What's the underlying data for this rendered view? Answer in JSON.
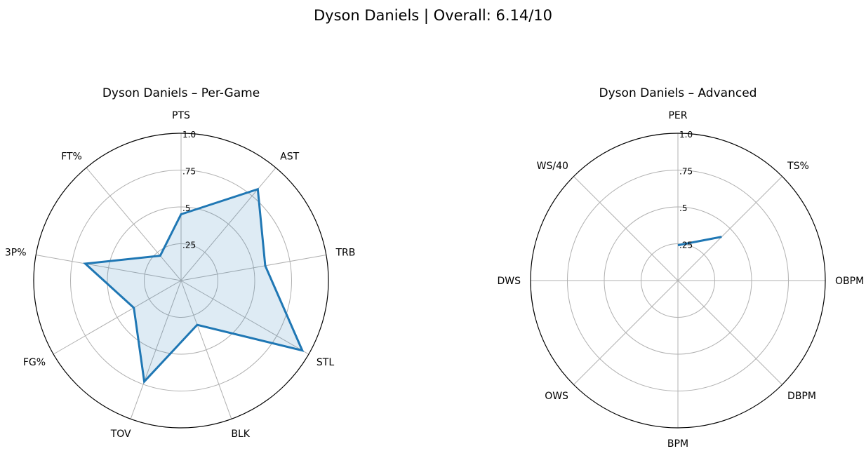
{
  "suptitle": "Dyson Daniels | Overall: 6.14/10",
  "colors": {
    "series": "#1f77b4",
    "fill": "#1f77b4",
    "grid": "#b0b0b0",
    "frame": "#000000"
  },
  "chart_data": [
    {
      "type": "radar",
      "title": "Dyson Daniels – Per-Game",
      "categories": [
        "PTS",
        "AST",
        "TRB",
        "STL",
        "BLK",
        "TOV",
        "FG%",
        "3P%",
        "FT%"
      ],
      "values": [
        0.45,
        0.81,
        0.58,
        0.95,
        0.32,
        0.73,
        0.37,
        0.66,
        0.22
      ],
      "rlim": [
        0,
        1
      ],
      "rticks": [
        0.25,
        0.5,
        0.75,
        1.0
      ],
      "rtick_labels": [
        ".25",
        ".5",
        ".75",
        "1.0"
      ],
      "filled": true,
      "grid": true
    },
    {
      "type": "radar",
      "title": "Dyson Daniels – Advanced",
      "categories": [
        "PER",
        "TS%",
        "OBPM",
        "DBPM",
        "BPM",
        "OWS",
        "DWS",
        "WS/40"
      ],
      "values": [
        0.24,
        0.42,
        0,
        0,
        0,
        0,
        0,
        0
      ],
      "rlim": [
        0,
        1
      ],
      "rticks": [
        0.25,
        0.5,
        0.75,
        1.0
      ],
      "rtick_labels": [
        ".25",
        ".5",
        ".75",
        "1.0"
      ],
      "filled": false,
      "open_path": true,
      "grid": true
    }
  ]
}
